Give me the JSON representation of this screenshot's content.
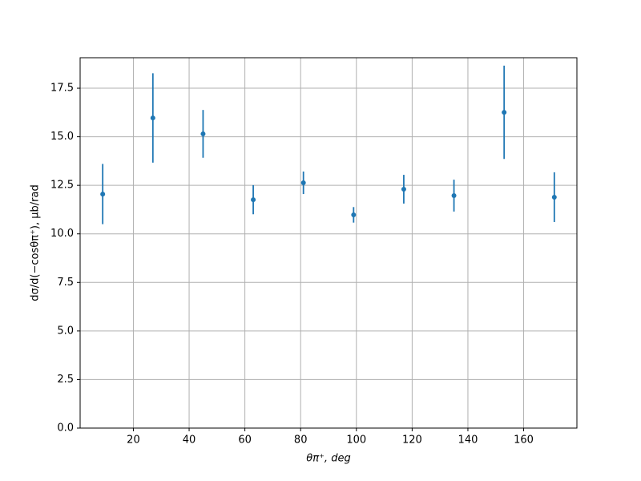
{
  "chart_data": {
    "type": "errorbar",
    "xlabel": "θπ⁺, deg",
    "ylabel": "dσ/d(−cosθπ⁺), μb/rad",
    "x": [
      9,
      27,
      45,
      63,
      81,
      99,
      117,
      135,
      153,
      171
    ],
    "values": [
      12.05,
      15.97,
      15.15,
      11.76,
      12.63,
      10.98,
      12.3,
      11.97,
      16.26,
      11.89
    ],
    "errors": [
      1.55,
      2.3,
      1.23,
      0.75,
      0.58,
      0.4,
      0.74,
      0.82,
      2.4,
      1.28
    ],
    "color": "#1f77b4",
    "xlim": [
      0.9,
      179.1
    ],
    "ylim": [
      0,
      19.07
    ],
    "xticks": [
      20,
      40,
      60,
      80,
      100,
      120,
      140,
      160
    ],
    "yticks": [
      {
        "value": 0,
        "label": "0.0"
      },
      {
        "value": 2.5,
        "label": "2.5"
      },
      {
        "value": 5,
        "label": "5.0"
      },
      {
        "value": 7.5,
        "label": "7.5"
      },
      {
        "value": 10,
        "label": "10.0"
      },
      {
        "value": 12.5,
        "label": "12.5"
      },
      {
        "value": 15,
        "label": "15.0"
      },
      {
        "value": 17.5,
        "label": "17.5"
      }
    ],
    "grid": true
  }
}
